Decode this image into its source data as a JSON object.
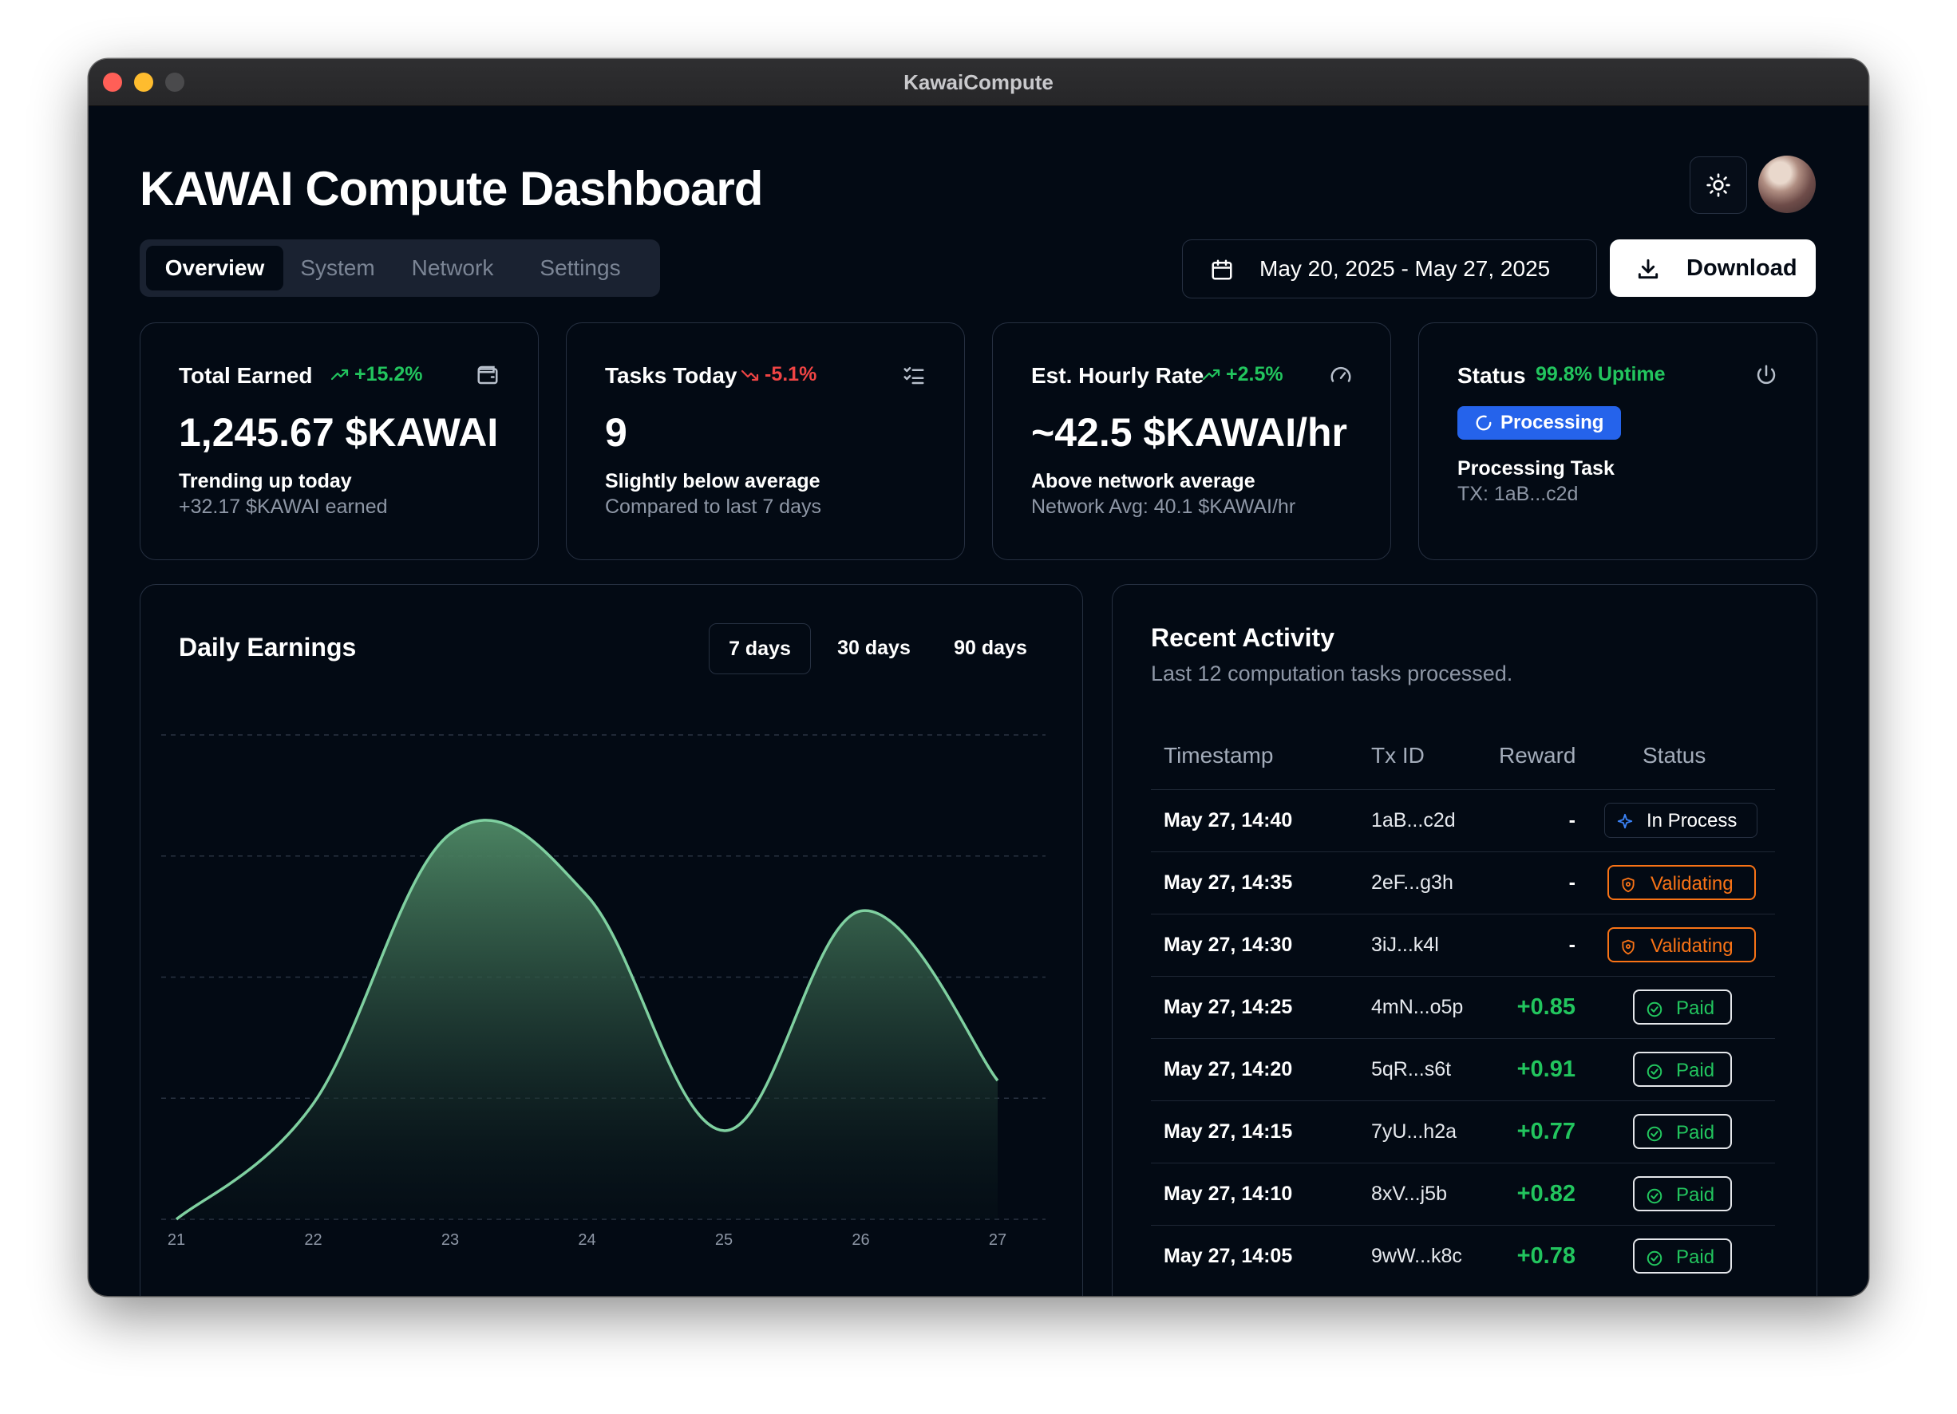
{
  "window": {
    "title": "KawaiCompute"
  },
  "header": {
    "title": "KAWAI Compute Dashboard",
    "tabs": [
      {
        "label": "Overview",
        "active": true
      },
      {
        "label": "System",
        "active": false
      },
      {
        "label": "Network",
        "active": false
      },
      {
        "label": "Settings",
        "active": false
      }
    ],
    "date_range": "May 20, 2025 - May 27, 2025",
    "download_label": "Download"
  },
  "stats": [
    {
      "title": "Total Earned",
      "trend": "+15.2%",
      "direction": "up",
      "icon": "wallet-icon",
      "value": "1,245.67 $KAWAI",
      "sub1": "Trending up today",
      "sub2": "+32.17 $KAWAI earned"
    },
    {
      "title": "Tasks Today",
      "trend": "-5.1%",
      "direction": "down",
      "icon": "checklist-icon",
      "value": "9",
      "sub1": "Slightly below average",
      "sub2": "Compared to last 7 days"
    },
    {
      "title": "Est. Hourly Rate",
      "trend": "+2.5%",
      "direction": "up",
      "icon": "gauge-icon",
      "value": "~42.5 $KAWAI/hr",
      "sub1": "Above network average",
      "sub2": "Network Avg: 40.1 $KAWAI/hr"
    },
    {
      "title": "Status",
      "uptime": "99.8% Uptime",
      "icon": "power-icon",
      "badge": "Processing",
      "sub1": "Processing Task",
      "sub2": "TX: 1aB...c2d"
    }
  ],
  "earnings": {
    "title": "Daily Earnings",
    "ranges": [
      {
        "label": "7 days",
        "active": true
      },
      {
        "label": "30 days",
        "active": false
      },
      {
        "label": "90 days",
        "active": false
      }
    ]
  },
  "chart_data": {
    "type": "area",
    "x": [
      "21",
      "22",
      "23",
      "24",
      "25",
      "26",
      "27"
    ],
    "values": [
      0,
      30,
      100,
      84,
      23,
      80,
      36
    ],
    "ylim": [
      0,
      100
    ],
    "grid": true,
    "title": "",
    "xlabel": "",
    "ylabel": "",
    "color": "#7fd0a0"
  },
  "activity": {
    "title": "Recent Activity",
    "subtitle": "Last 12 computation tasks processed.",
    "columns": [
      "Timestamp",
      "Tx ID",
      "Reward",
      "Status"
    ],
    "rows": [
      {
        "ts": "May 27, 14:40",
        "tx": "1aB...c2d",
        "reward": "-",
        "status": "In Process",
        "kind": "inproc"
      },
      {
        "ts": "May 27, 14:35",
        "tx": "2eF...g3h",
        "reward": "-",
        "status": "Validating",
        "kind": "valid"
      },
      {
        "ts": "May 27, 14:30",
        "tx": "3iJ...k4l",
        "reward": "-",
        "status": "Validating",
        "kind": "valid"
      },
      {
        "ts": "May 27, 14:25",
        "tx": "4mN...o5p",
        "reward": "+0.85",
        "status": "Paid",
        "kind": "paid"
      },
      {
        "ts": "May 27, 14:20",
        "tx": "5qR...s6t",
        "reward": "+0.91",
        "status": "Paid",
        "kind": "paid"
      },
      {
        "ts": "May 27, 14:15",
        "tx": "7yU...h2a",
        "reward": "+0.77",
        "status": "Paid",
        "kind": "paid"
      },
      {
        "ts": "May 27, 14:10",
        "tx": "8xV...j5b",
        "reward": "+0.82",
        "status": "Paid",
        "kind": "paid"
      },
      {
        "ts": "May 27, 14:05",
        "tx": "9wW...k8c",
        "reward": "+0.78",
        "status": "Paid",
        "kind": "paid"
      }
    ]
  }
}
